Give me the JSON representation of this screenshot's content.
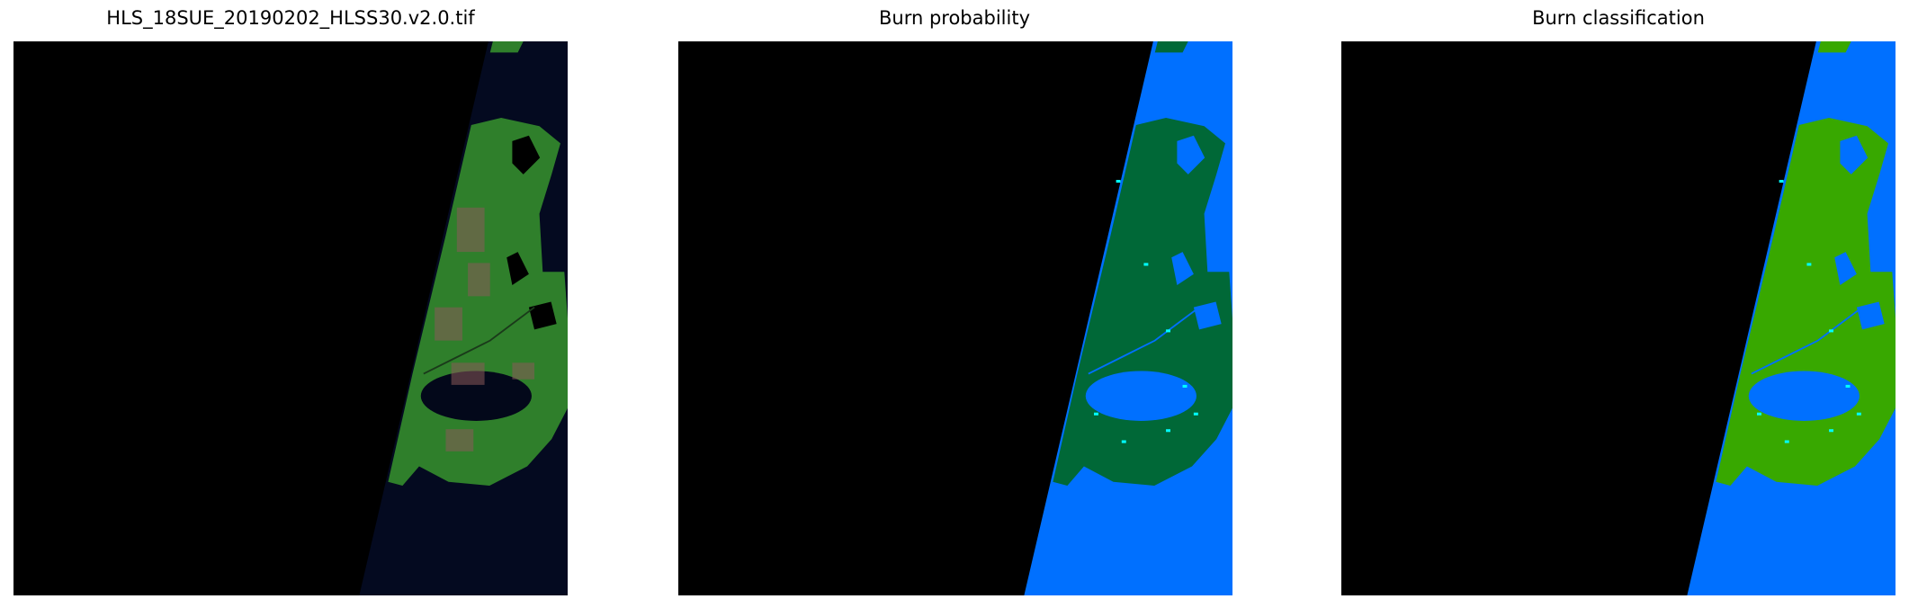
{
  "panels": [
    {
      "title": "HLS_18SUE_20190202_HLSS30.v2.0.tif",
      "kind": "rgb-composite",
      "colors": {
        "nodata": "#000000",
        "water": "#040a20",
        "land": "#2f7f2b",
        "land_alt": "#8a5a5a",
        "lake": "#03081a"
      }
    },
    {
      "title": "Burn probability",
      "kind": "probability-map",
      "colors": {
        "nodata": "#000000",
        "water": "#0070ff",
        "land": "#006837",
        "lake": "#0070ff",
        "speck": "#00ffff"
      }
    },
    {
      "title": "Burn classification",
      "kind": "classification-map",
      "colors": {
        "nodata": "#000000",
        "water": "#0070ff",
        "land": "#38a800",
        "lake": "#0070ff",
        "speck": "#00ffff"
      }
    }
  ]
}
